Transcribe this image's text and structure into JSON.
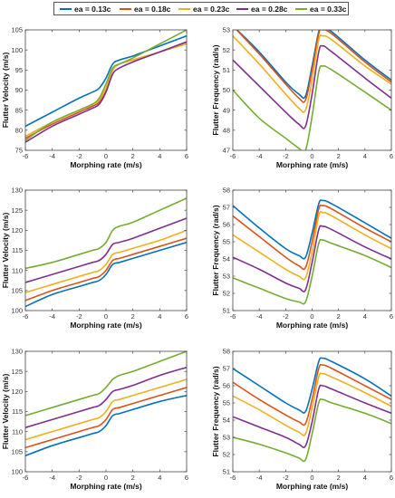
{
  "legend": {
    "items": [
      {
        "label": "ea = 0.13c",
        "color": "#0072BD"
      },
      {
        "label": "ea = 0.18c",
        "color": "#D95319"
      },
      {
        "label": "ea = 0.23c",
        "color": "#EDB120"
      },
      {
        "label": "ea = 0.28c",
        "color": "#7E2F8E"
      },
      {
        "label": "ea = 0.33c",
        "color": "#77AC30"
      }
    ]
  },
  "chart_data": [
    {
      "type": "line",
      "xlabel": "Morphing rate (m/s)",
      "ylabel": "Flutter Velocity (m/s)",
      "xlim": [
        -6,
        6
      ],
      "ylim": [
        75,
        105
      ],
      "xticks": [
        -6,
        -4,
        -2,
        0,
        2,
        4,
        6
      ],
      "yticks": [
        75,
        80,
        85,
        90,
        95,
        100,
        105
      ],
      "x": [
        -6,
        -4,
        -2,
        -1,
        -0.5,
        0,
        0.5,
        1,
        2,
        4,
        6
      ],
      "series": [
        {
          "values": [
            81,
            84.5,
            88,
            89.5,
            90.5,
            93,
            96.5,
            97.5,
            98.5,
            101,
            103.5
          ],
          "color": "#0072BD"
        },
        {
          "values": [
            78,
            81.5,
            84.5,
            86,
            87,
            90,
            95,
            96.5,
            97.5,
            99.5,
            102
          ],
          "color": "#D95319"
        },
        {
          "values": [
            78.5,
            82,
            85,
            86.5,
            87.5,
            90.5,
            95,
            96.5,
            97.5,
            99.5,
            101.5
          ],
          "color": "#EDB120"
        },
        {
          "values": [
            77,
            81,
            84,
            85.5,
            86.5,
            89.5,
            94,
            95.5,
            97,
            99.5,
            102
          ],
          "color": "#7E2F8E"
        },
        {
          "values": [
            77.5,
            82,
            85,
            86.5,
            88,
            91.5,
            95.5,
            96.5,
            98,
            101.5,
            105
          ],
          "color": "#77AC30"
        }
      ]
    },
    {
      "type": "line",
      "xlabel": "Morphing rate (m/s)",
      "ylabel": "Flutter Frequency (rad/s)",
      "xlim": [
        -6,
        6
      ],
      "ylim": [
        47,
        53
      ],
      "xticks": [
        -6,
        -4,
        -2,
        0,
        2,
        4,
        6
      ],
      "yticks": [
        47,
        48,
        49,
        50,
        51,
        52,
        53
      ],
      "x": [
        -6,
        -4,
        -2,
        -1,
        -0.5,
        0,
        0.5,
        0.8,
        1.5,
        4,
        6
      ],
      "series": [
        {
          "values": [
            53.2,
            51.9,
            50.4,
            49.8,
            49.7,
            51.2,
            52.9,
            53.1,
            52.9,
            51.5,
            50.5
          ],
          "color": "#0072BD"
        },
        {
          "values": [
            53.2,
            51.8,
            50.3,
            49.6,
            49.5,
            51.0,
            52.8,
            53.0,
            52.8,
            51.4,
            50.4
          ],
          "color": "#D95319"
        },
        {
          "values": [
            52.7,
            51.3,
            49.8,
            49.1,
            49.0,
            50.5,
            52.5,
            52.7,
            52.5,
            51.2,
            50.3
          ],
          "color": "#EDB120"
        },
        {
          "values": [
            51.5,
            50.2,
            48.9,
            48.3,
            48.2,
            49.8,
            51.9,
            52.2,
            51.9,
            50.6,
            49.6
          ],
          "color": "#7E2F8E"
        },
        {
          "values": [
            50.0,
            48.6,
            47.6,
            47.1,
            47.0,
            48.7,
            50.9,
            51.2,
            51.0,
            49.9,
            49.0
          ],
          "color": "#77AC30"
        }
      ]
    },
    {
      "type": "line",
      "xlabel": "Morphing rate (m/s)",
      "ylabel": "Flutter Velocity (m/s)",
      "xlim": [
        -6,
        6
      ],
      "ylim": [
        100,
        130
      ],
      "xticks": [
        -6,
        -4,
        -2,
        0,
        2,
        4,
        6
      ],
      "yticks": [
        100,
        105,
        110,
        115,
        120,
        125,
        130
      ],
      "x": [
        -6,
        -4,
        -2,
        -1,
        -0.5,
        0,
        0.5,
        1,
        2,
        4,
        6
      ],
      "series": [
        {
          "values": [
            101,
            104,
            106,
            107,
            107.5,
            109,
            111.5,
            112,
            113,
            115,
            117
          ],
          "color": "#0072BD"
        },
        {
          "values": [
            102.5,
            105,
            107,
            108,
            108.5,
            110,
            112.5,
            113,
            114,
            116,
            118
          ],
          "color": "#D95319"
        },
        {
          "values": [
            104.5,
            106.5,
            108.5,
            109.5,
            110,
            111.5,
            114,
            114.5,
            115.5,
            117.5,
            120
          ],
          "color": "#EDB120"
        },
        {
          "values": [
            107,
            109,
            111,
            112,
            112.5,
            114,
            116.5,
            117,
            118,
            120.5,
            123
          ],
          "color": "#7E2F8E"
        },
        {
          "values": [
            110.5,
            112,
            114,
            115,
            115.5,
            117,
            120,
            121,
            122,
            125,
            128
          ],
          "color": "#77AC30"
        }
      ]
    },
    {
      "type": "line",
      "xlabel": "Morphing rate (m/s)",
      "ylabel": "Flutter Frequency (rad/s)",
      "xlim": [
        -6,
        6
      ],
      "ylim": [
        51,
        58
      ],
      "xticks": [
        -6,
        -4,
        -2,
        0,
        2,
        4,
        6
      ],
      "yticks": [
        51,
        52,
        53,
        54,
        55,
        56,
        57,
        58
      ],
      "x": [
        -6,
        -4,
        -2,
        -1,
        -0.5,
        0,
        0.5,
        0.8,
        1.5,
        4,
        6
      ],
      "series": [
        {
          "values": [
            57.1,
            55.8,
            54.6,
            54.2,
            54.1,
            55.5,
            57.2,
            57.4,
            57.2,
            56.1,
            55.2
          ],
          "color": "#0072BD"
        },
        {
          "values": [
            56.5,
            55.3,
            54.1,
            53.6,
            53.5,
            55.0,
            56.9,
            57.1,
            56.9,
            55.8,
            55.0
          ],
          "color": "#D95319"
        },
        {
          "values": [
            55.4,
            54.4,
            53.4,
            53.0,
            52.9,
            54.4,
            56.5,
            56.7,
            56.5,
            55.4,
            54.6
          ],
          "color": "#EDB120"
        },
        {
          "values": [
            54.1,
            53.4,
            52.6,
            52.3,
            52.2,
            53.8,
            55.7,
            55.9,
            55.7,
            54.7,
            54.0
          ],
          "color": "#7E2F8E"
        },
        {
          "values": [
            52.9,
            52.3,
            51.7,
            51.5,
            51.5,
            53.0,
            54.9,
            55.1,
            54.9,
            54.2,
            53.5
          ],
          "color": "#77AC30"
        }
      ]
    },
    {
      "type": "line",
      "xlabel": "Morphing rate (m/s)",
      "ylabel": "Flutter Velocity (m/s)",
      "xlim": [
        -6,
        6
      ],
      "ylim": [
        100,
        130
      ],
      "xticks": [
        -6,
        -4,
        -2,
        0,
        2,
        4,
        6
      ],
      "yticks": [
        100,
        105,
        110,
        115,
        120,
        125,
        130
      ],
      "x": [
        -6,
        -4,
        -2,
        -1,
        -0.5,
        0,
        0.5,
        1,
        2,
        4,
        6
      ],
      "series": [
        {
          "values": [
            104,
            106.5,
            108.5,
            109.5,
            110,
            111.5,
            114,
            114.5,
            115.5,
            117.5,
            119
          ],
          "color": "#0072BD"
        },
        {
          "values": [
            106,
            108,
            110,
            111,
            111.5,
            113,
            115.5,
            116,
            117,
            119,
            121
          ],
          "color": "#D95319"
        },
        {
          "values": [
            108,
            110,
            112,
            113,
            113.5,
            115,
            117.5,
            118,
            119,
            121,
            123
          ],
          "color": "#EDB120"
        },
        {
          "values": [
            111,
            113,
            115,
            116,
            116.5,
            118,
            120,
            120.5,
            121.5,
            124,
            126
          ],
          "color": "#7E2F8E"
        },
        {
          "values": [
            114,
            116,
            118,
            119,
            119.5,
            121,
            123,
            124,
            125,
            127.5,
            130
          ],
          "color": "#77AC30"
        }
      ]
    },
    {
      "type": "line",
      "xlabel": "Morphing rate (m/s)",
      "ylabel": "Flutter Frequency (rad/s)",
      "xlim": [
        -6,
        6
      ],
      "ylim": [
        51,
        58
      ],
      "xticks": [
        -6,
        -4,
        -2,
        0,
        2,
        4,
        6
      ],
      "yticks": [
        51,
        52,
        53,
        54,
        55,
        56,
        57,
        58
      ],
      "x": [
        -6,
        -4,
        -2,
        -1,
        -0.5,
        0,
        0.5,
        0.8,
        1.5,
        4,
        6
      ],
      "series": [
        {
          "values": [
            57.0,
            56.0,
            55.0,
            54.6,
            54.5,
            55.8,
            57.4,
            57.6,
            57.4,
            56.4,
            55.4
          ],
          "color": "#0072BD"
        },
        {
          "values": [
            56.2,
            55.2,
            54.3,
            53.9,
            53.8,
            55.2,
            57.0,
            57.2,
            57.0,
            56.0,
            55.2
          ],
          "color": "#D95319"
        },
        {
          "values": [
            55.4,
            54.6,
            53.7,
            53.3,
            53.2,
            54.7,
            56.5,
            56.7,
            56.5,
            55.6,
            54.8
          ],
          "color": "#EDB120"
        },
        {
          "values": [
            54.2,
            53.6,
            53.0,
            52.6,
            52.5,
            53.9,
            55.8,
            56.0,
            55.8,
            55.0,
            54.4
          ],
          "color": "#7E2F8E"
        },
        {
          "values": [
            53.0,
            52.6,
            52.1,
            51.8,
            51.7,
            53.2,
            55.0,
            55.2,
            55.0,
            54.4,
            53.8
          ],
          "color": "#77AC30"
        }
      ]
    }
  ]
}
